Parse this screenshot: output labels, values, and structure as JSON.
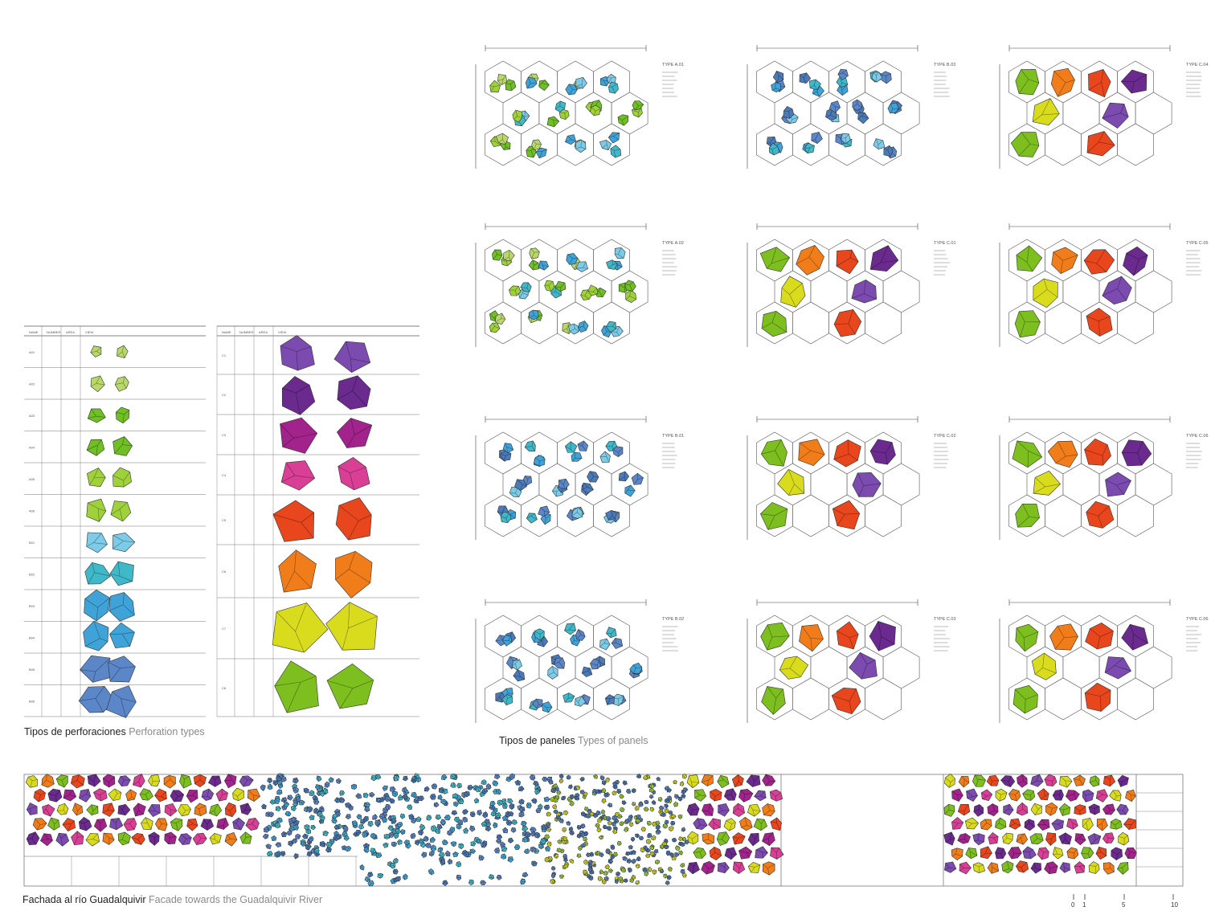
{
  "captions": {
    "perforation": {
      "es": "Tipos de perforaciones",
      "en": "Perforation types"
    },
    "panels": {
      "es": "Tipos de paneles",
      "en": "Types of panels"
    },
    "facade": {
      "es": "Fachada al río Guadalquivir",
      "en": "Facade towards the Guadalquivir River"
    }
  },
  "colors": {
    "lime": "#9fd23a",
    "green": "#6fbf25",
    "lightgreen": "#b8d86a",
    "cyan": "#3fa3d8",
    "sky": "#7ccbe8",
    "teal": "#3fb8c9",
    "blue": "#5b86c8",
    "steel": "#4a7ab8",
    "purple": "#6a2a8e",
    "violet": "#7b4bb0",
    "magenta": "#a3238c",
    "pink": "#d83f95",
    "red": "#e8461d",
    "orange": "#f07d1a",
    "yellow": "#d9dc1c",
    "grass": "#7cbf1e"
  },
  "perforation_table": {
    "headers": [
      "NAME",
      "NUMBER",
      "AREA",
      "VIEW"
    ],
    "rows": [
      {
        "name": "A01",
        "color": "lightgreen"
      },
      {
        "name": "A02",
        "color": "lightgreen"
      },
      {
        "name": "A03",
        "color": "green"
      },
      {
        "name": "A04",
        "color": "green"
      },
      {
        "name": "A05",
        "color": "lime"
      },
      {
        "name": "A06",
        "color": "lime"
      },
      {
        "name": "B01",
        "color": "sky"
      },
      {
        "name": "B02",
        "color": "teal"
      },
      {
        "name": "B03",
        "color": "cyan"
      },
      {
        "name": "B04",
        "color": "cyan"
      },
      {
        "name": "B05",
        "color": "blue"
      },
      {
        "name": "B06",
        "color": "blue"
      }
    ]
  },
  "color_table": {
    "headers": [
      "NAME",
      "NUMBER",
      "AREA",
      "VIEW"
    ],
    "rows": [
      {
        "name": "C1",
        "color": "violet"
      },
      {
        "name": "C2",
        "color": "purple"
      },
      {
        "name": "C3",
        "color": "magenta"
      },
      {
        "name": "C4",
        "color": "pink"
      },
      {
        "name": "C5",
        "color": "red"
      },
      {
        "name": "C6",
        "color": "orange"
      },
      {
        "name": "C7",
        "color": "yellow"
      },
      {
        "name": "C8",
        "color": "grass"
      }
    ]
  },
  "panels": [
    {
      "title": "TYPE A.01",
      "scheme": "A"
    },
    {
      "title": "TYPE B.03",
      "scheme": "B"
    },
    {
      "title": "TYPE C.04",
      "scheme": "C"
    },
    {
      "title": "TYPE A.02",
      "scheme": "A"
    },
    {
      "title": "TYPE C.01",
      "scheme": "C"
    },
    {
      "title": "TYPE C.05",
      "scheme": "C"
    },
    {
      "title": "TYPE B.01",
      "scheme": "B"
    },
    {
      "title": "TYPE C.02",
      "scheme": "C"
    },
    {
      "title": "TYPE C.06",
      "scheme": "C"
    },
    {
      "title": "TYPE B.02",
      "scheme": "B"
    },
    {
      "title": "TYPE C.03",
      "scheme": "C"
    },
    {
      "title": "TYPE C.06",
      "scheme": "C"
    }
  ],
  "scale_bar": {
    "labels": [
      "0",
      "1",
      "5",
      "10"
    ]
  }
}
